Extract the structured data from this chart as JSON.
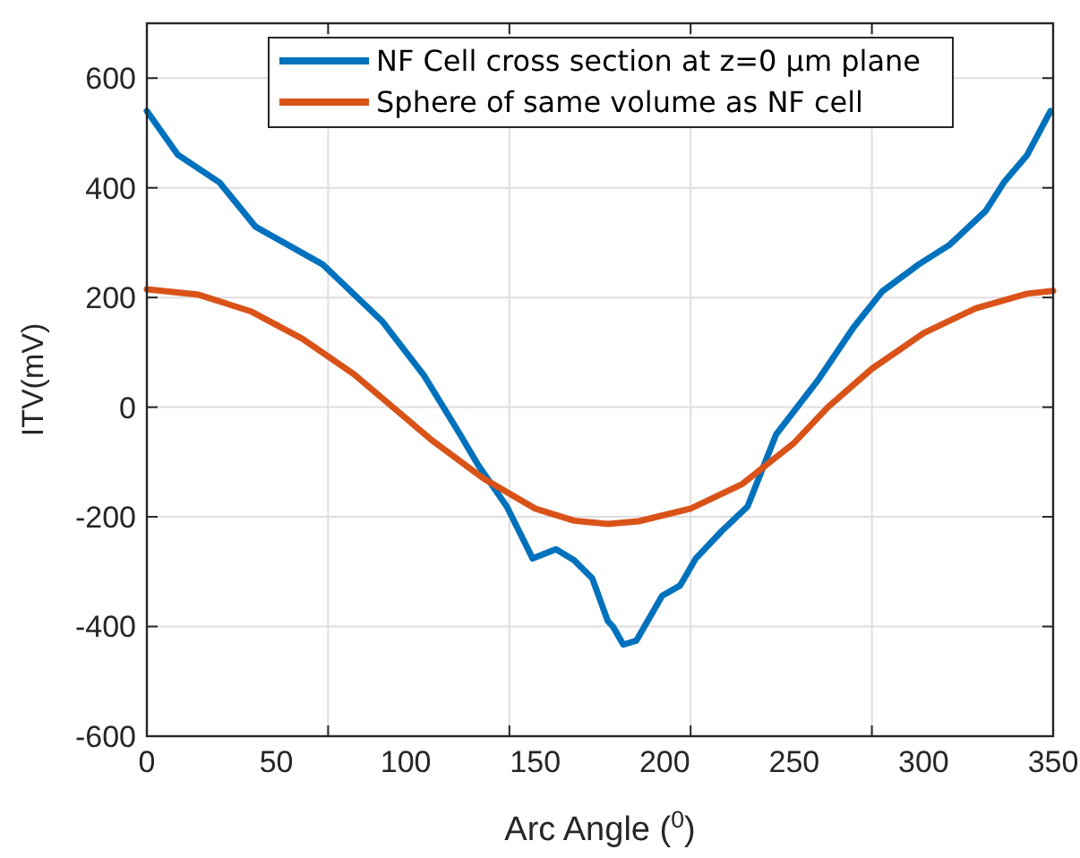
{
  "chart_data": {
    "type": "line",
    "xlabel": "Arc Angle ($^{0}$)",
    "ylabel": "ITV(mV)",
    "xlim": [
      0,
      350
    ],
    "ylim": [
      -600,
      700
    ],
    "xticks": [
      0,
      50,
      100,
      150,
      200,
      250,
      300,
      {
        "value": 350,
        "label": "350"
      },
      {
        "value": 70,
        "label": null
      },
      {
        "value": 140,
        "label": null
      },
      {
        "value": 210,
        "label": null
      },
      {
        "value": 280,
        "label": null
      }
    ],
    "yticks": [
      -600,
      -400,
      -200,
      0,
      200,
      400,
      600
    ],
    "grid": true,
    "legend": "top",
    "line_style": "solid",
    "marker": "none",
    "series": [
      {
        "name": "NF Cell cross section at z=0 μm plane",
        "color": "#0072bd",
        "x": [
          0,
          12,
          28,
          42,
          68,
          91,
          107,
          121,
          128,
          139,
          149,
          158,
          165,
          172,
          178,
          180,
          184,
          189,
          199,
          206,
          212,
          222,
          232,
          243,
          259,
          273,
          284,
          298,
          310,
          324,
          331,
          340,
          349
        ],
        "values": [
          540,
          460,
          410,
          329,
          260,
          156,
          58,
          -50,
          -106,
          -181,
          -276,
          -259,
          -279,
          -312,
          -390,
          -400,
          -433,
          -426,
          -344,
          -325,
          -276,
          -226,
          -181,
          -50,
          48,
          146,
          211,
          260,
          296,
          358,
          410,
          460,
          540
        ]
      },
      {
        "name": "Sphere of same volume as NF cell",
        "color": "#d95319",
        "x": [
          0,
          20,
          40,
          60,
          80,
          95,
          110,
          130,
          150,
          165,
          178,
          190,
          210,
          230,
          250,
          263,
          280,
          300,
          320,
          340,
          350
        ],
        "values": [
          215,
          205,
          175,
          125,
          60,
          0,
          -60,
          -130,
          -185,
          -207,
          -213,
          -208,
          -185,
          -140,
          -65,
          0,
          70,
          135,
          180,
          207,
          212
        ]
      }
    ]
  }
}
